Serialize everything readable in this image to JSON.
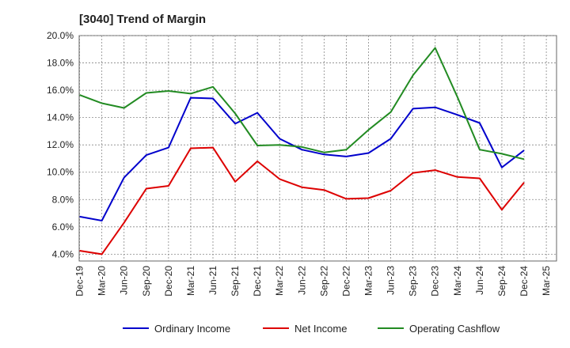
{
  "chart_data": {
    "type": "line",
    "title": "[3040]  Trend of Margin",
    "xlabel": "",
    "ylabel": "",
    "x": [
      "Dec-19",
      "Mar-20",
      "Jun-20",
      "Sep-20",
      "Dec-20",
      "Mar-21",
      "Jun-21",
      "Sep-21",
      "Dec-21",
      "Mar-22",
      "Jun-22",
      "Sep-22",
      "Dec-22",
      "Mar-23",
      "Jun-23",
      "Sep-23",
      "Dec-23",
      "Mar-24",
      "Jun-24",
      "Sep-24",
      "Dec-24",
      "Mar-25"
    ],
    "ylim": [
      3.5,
      20.0
    ],
    "yticks": [
      4.0,
      6.0,
      8.0,
      10.0,
      12.0,
      14.0,
      16.0,
      18.0,
      20.0
    ],
    "ytick_labels": [
      "4.0%",
      "6.0%",
      "8.0%",
      "10.0%",
      "12.0%",
      "14.0%",
      "16.0%",
      "18.0%",
      "20.0%"
    ],
    "grid": true,
    "legend_position": "bottom",
    "series": [
      {
        "name": "Ordinary Income",
        "color": "#0000cc",
        "values": [
          6.75,
          6.45,
          9.6,
          11.25,
          11.8,
          15.45,
          15.4,
          13.55,
          14.35,
          12.45,
          11.65,
          11.3,
          11.15,
          11.4,
          12.45,
          14.65,
          14.75,
          14.2,
          13.6,
          10.35,
          11.6,
          null
        ]
      },
      {
        "name": "Net Income",
        "color": "#dd0000",
        "values": [
          4.25,
          4.0,
          6.3,
          8.8,
          9.0,
          11.75,
          11.8,
          9.3,
          10.8,
          9.5,
          8.9,
          8.7,
          8.05,
          8.1,
          8.65,
          9.95,
          10.15,
          9.65,
          9.55,
          7.25,
          9.25,
          null
        ]
      },
      {
        "name": "Operating Cashflow",
        "color": "#228b22",
        "values": [
          15.65,
          15.05,
          14.7,
          15.8,
          15.95,
          15.75,
          16.25,
          14.3,
          11.95,
          12.0,
          11.85,
          11.45,
          11.65,
          13.1,
          14.4,
          17.1,
          19.1,
          15.5,
          11.65,
          11.35,
          10.95,
          null
        ]
      }
    ]
  }
}
